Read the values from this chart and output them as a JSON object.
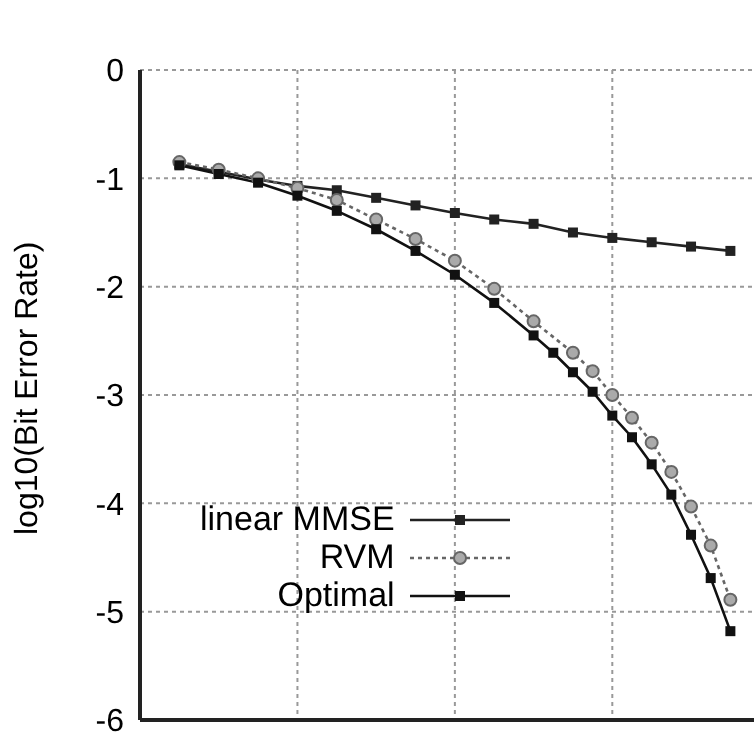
{
  "chart_data": {
    "type": "line",
    "ylabel": "log10(Bit Error Rate)",
    "categories": [
      null,
      null,
      null,
      null,
      null,
      null,
      null,
      null,
      null,
      null,
      null,
      null,
      null,
      null,
      null,
      null,
      null,
      null,
      null,
      null,
      null,
      null,
      null,
      null,
      null,
      null,
      null,
      null,
      null
    ],
    "ylim": [
      -6,
      0
    ],
    "yticks": [
      -6,
      -5,
      -4,
      -3,
      -2,
      -1,
      0
    ],
    "grid": true,
    "legend": "bottom left",
    "series": [
      {
        "name": "linear MMSE",
        "color": "#222222",
        "marker": "square",
        "line_style": "solid",
        "values": [
          -0.87,
          null,
          -0.94,
          null,
          -1.01,
          null,
          -1.07,
          null,
          -1.11,
          null,
          -1.18,
          null,
          -1.25,
          null,
          -1.32,
          null,
          -1.38,
          null,
          -1.42,
          null,
          -1.5,
          null,
          -1.55,
          null,
          -1.59,
          null,
          -1.63,
          null,
          -1.67
        ]
      },
      {
        "name": "RVM",
        "color": "#666666",
        "marker": "circle",
        "line_style": "dotted",
        "values": [
          -0.85,
          null,
          -0.92,
          null,
          -1.0,
          null,
          -1.09,
          null,
          -1.2,
          null,
          -1.38,
          null,
          -1.56,
          null,
          -1.76,
          null,
          -2.02,
          null,
          -2.32,
          null,
          -2.61,
          -2.78,
          -3.0,
          -3.21,
          -3.44,
          -3.71,
          -4.03,
          -4.39,
          -4.89
        ]
      },
      {
        "name": "Optimal",
        "color": "#111111",
        "marker": "square",
        "line_style": "solid",
        "values": [
          -0.88,
          null,
          -0.96,
          null,
          -1.04,
          null,
          -1.16,
          null,
          -1.3,
          null,
          -1.47,
          null,
          -1.67,
          null,
          -1.89,
          null,
          -2.15,
          null,
          -2.45,
          -2.61,
          -2.79,
          -2.97,
          -3.19,
          -3.39,
          -3.64,
          -3.92,
          -4.29,
          -4.69,
          -5.18
        ]
      }
    ]
  }
}
